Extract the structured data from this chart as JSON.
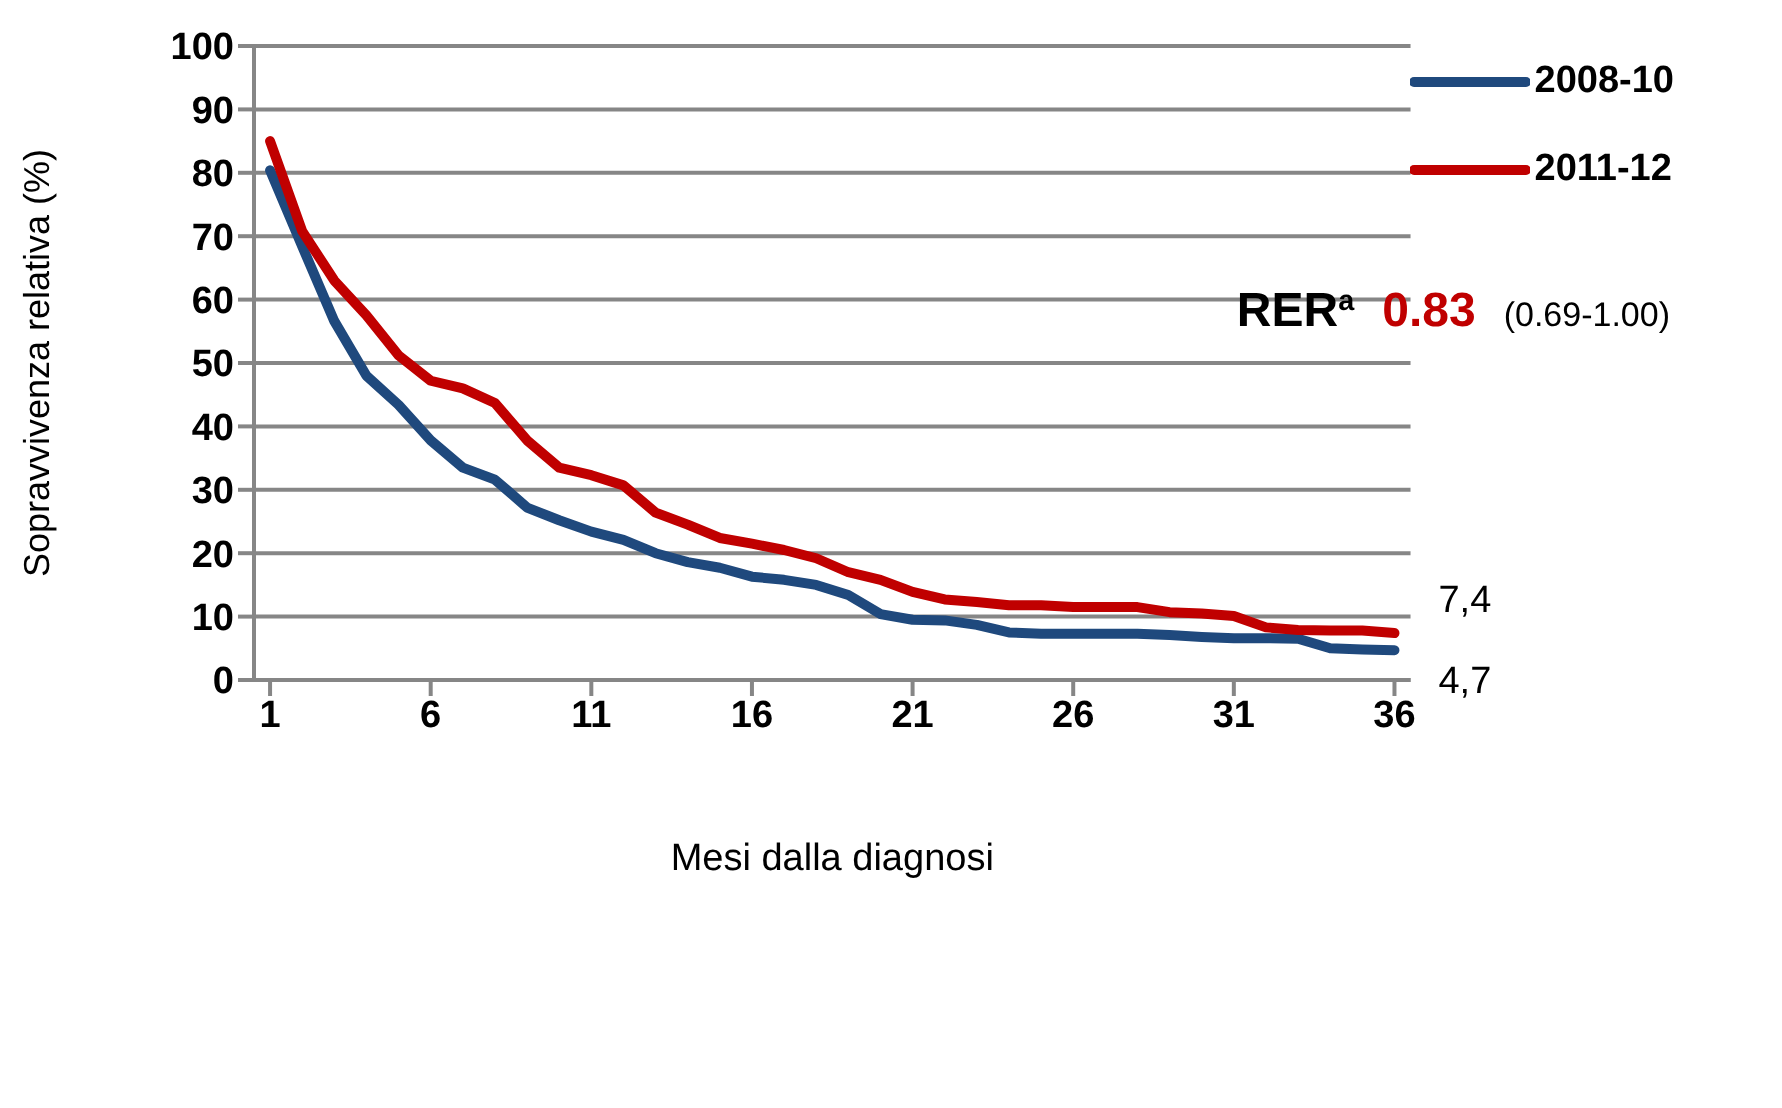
{
  "chart_data": {
    "type": "line",
    "xlabel": "Mesi dalla diagnosi",
    "ylabel": "Sopravvivenza relativa (%)",
    "x": [
      1,
      2,
      3,
      4,
      5,
      6,
      7,
      8,
      9,
      10,
      11,
      12,
      13,
      14,
      15,
      16,
      17,
      18,
      19,
      20,
      21,
      22,
      23,
      24,
      25,
      26,
      27,
      28,
      29,
      30,
      31,
      32,
      33,
      34,
      35,
      36
    ],
    "series": [
      {
        "name": "2008-10",
        "color": "#1f497d",
        "values": [
          80.4,
          68.4,
          56.6,
          48,
          43.4,
          37.8,
          33.5,
          31.6,
          27.2,
          25.2,
          23.4,
          22.1,
          20,
          18.6,
          17.7,
          16.3,
          15.8,
          15,
          13.4,
          10.4,
          9.5,
          9.4,
          8.7,
          7.5,
          7.3,
          7.3,
          7.3,
          7.3,
          7.1,
          6.8,
          6.6,
          6.6,
          6.5,
          5,
          4.8,
          4.7
        ]
      },
      {
        "name": "2011-12",
        "color": "#c00000",
        "values": [
          85,
          70.8,
          63,
          57.5,
          51.2,
          47.2,
          46,
          43.7,
          37.8,
          33.5,
          32.3,
          30.7,
          26.4,
          24.5,
          22.4,
          21.5,
          20.5,
          19.2,
          17,
          15.8,
          13.9,
          12.7,
          12.3,
          11.8,
          11.8,
          11.5,
          11.5,
          11.5,
          10.7,
          10.5,
          10.1,
          8.3,
          7.9,
          7.8,
          7.8,
          7.4
        ]
      }
    ],
    "xlim": [
      0.5,
      36.5
    ],
    "xticks": [
      1,
      6,
      11,
      16,
      21,
      26,
      31,
      36
    ],
    "ylim": [
      0,
      100
    ],
    "yticks": [
      0,
      10,
      20,
      30,
      40,
      50,
      60,
      70,
      80,
      90,
      100
    ],
    "grid": "y",
    "legend": "top right",
    "marker": "none",
    "line_style": "solid",
    "annotations": [
      "RER$^{a}$",
      "0.83",
      "(0.69-1.00)",
      {
        "text": "7,4",
        "x": 36,
        "y": 7.4
      },
      {
        "text": "4,7",
        "x": 36,
        "y": 4.7
      }
    ]
  }
}
